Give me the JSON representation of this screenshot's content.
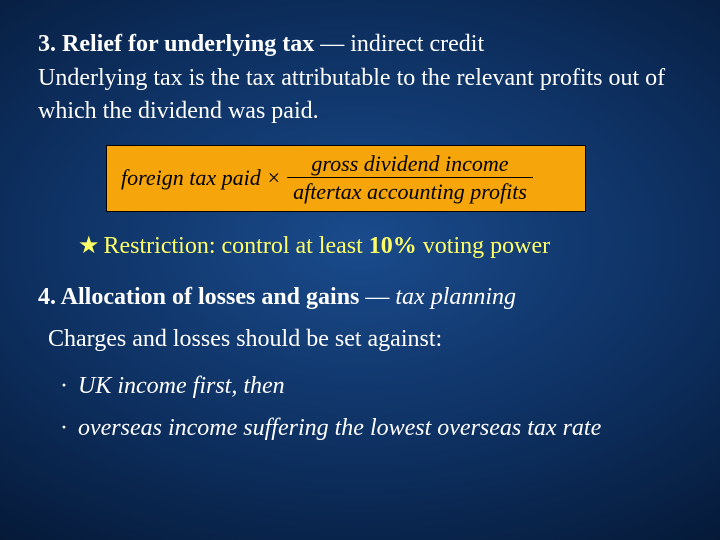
{
  "colors": {
    "background_gradient_center": "#1a4b8c",
    "background_gradient_mid": "#0d2f5f",
    "background_gradient_outer": "#041530",
    "background_gradient_edge": "#010812",
    "text_primary": "#ffffff",
    "text_highlight": "#ffff66",
    "formula_bg": "#f6a50a",
    "formula_border": "#000000",
    "formula_text": "#000000"
  },
  "typography": {
    "font_family": "Times New Roman",
    "body_fontsize_pt": 18,
    "formula_fontsize_pt": 16
  },
  "section3": {
    "title_bold": "3. Relief for underlying tax",
    "title_rest": " — indirect credit",
    "body": "Underlying tax is the tax attributable to the relevant profits out of which the dividend was paid."
  },
  "formula": {
    "left": "foreign tax paid ×",
    "numerator": "gross dividend income",
    "denominator": "aftertax accounting profits"
  },
  "restriction": {
    "star": "★",
    "label": "Restriction: control at least ",
    "percent_bold": "10%",
    "rest": " voting power"
  },
  "section4": {
    "title_bold": "4. Allocation of losses and gains",
    "title_rest": " — ",
    "title_italic": "tax planning",
    "charges": "Charges and losses should be set against:",
    "bullets": [
      "UK income first, then",
      "overseas income suffering the lowest overseas tax rate"
    ],
    "bullet_marker": "·"
  }
}
